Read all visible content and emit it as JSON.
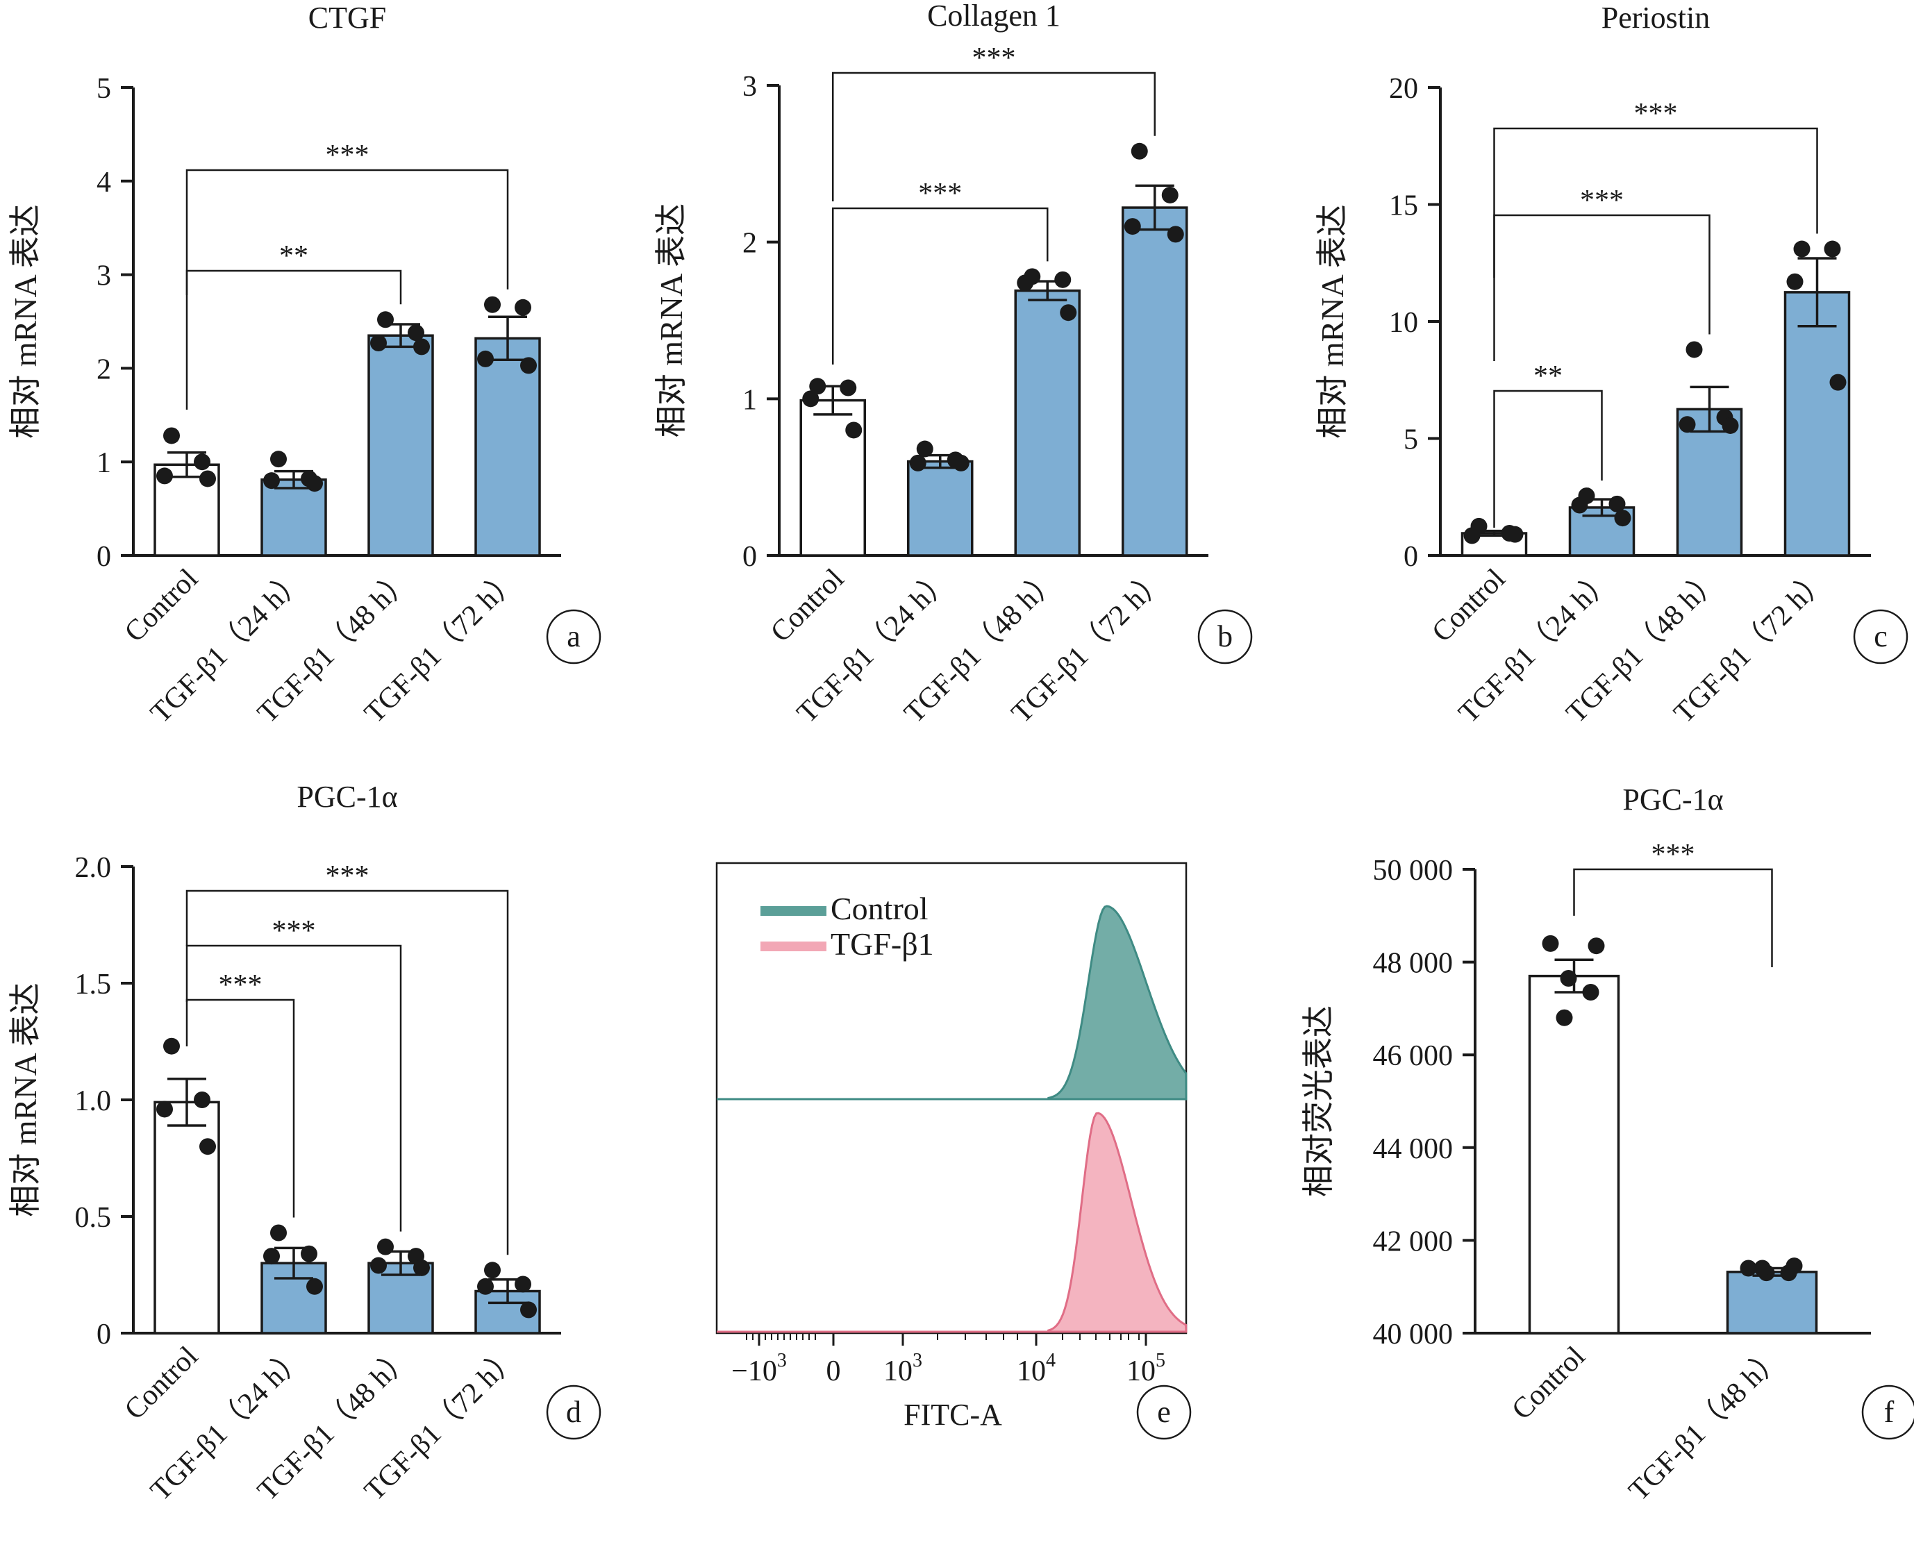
{
  "chart_data": [
    {
      "panel": "a",
      "type": "bar",
      "title": "CTGF",
      "ylabel": "相对 mRNA 表达",
      "ylim": [
        0,
        5
      ],
      "yticks": [
        "0",
        "1",
        "2",
        "3",
        "4",
        "5"
      ],
      "categories": [
        "Control",
        "TGF-β1（24 h）",
        "TGF-β1（48 h）",
        "TGF-β1（72 h）"
      ],
      "values": [
        0.97,
        0.81,
        2.35,
        2.32
      ],
      "errors": [
        0.13,
        0.09,
        0.12,
        0.23
      ],
      "points": [
        [
          1.28,
          1.0,
          0.85,
          0.82
        ],
        [
          1.03,
          0.82,
          0.8,
          0.77
        ],
        [
          2.52,
          2.38,
          2.27,
          2.23
        ],
        [
          2.68,
          2.65,
          2.1,
          2.03
        ]
      ],
      "significance": [
        {
          "from": 0,
          "to": 2,
          "label": "**"
        },
        {
          "from": 0,
          "to": 3,
          "label": "***"
        }
      ],
      "bar_colors": [
        "#ffffff",
        "#7eaed3",
        "#7eaed3",
        "#7eaed3"
      ]
    },
    {
      "panel": "b",
      "type": "bar",
      "title": "Collagen 1",
      "ylabel": "相对 mRNA 表达",
      "ylim": [
        0,
        3
      ],
      "yticks": [
        "0",
        "1",
        "2",
        "3"
      ],
      "categories": [
        "Control",
        "TGF-β1（24 h）",
        "TGF-β1（48 h）",
        "TGF-β1（72 h）"
      ],
      "values": [
        0.99,
        0.6,
        1.69,
        2.22
      ],
      "errors": [
        0.09,
        0.04,
        0.06,
        0.14
      ],
      "points": [
        [
          1.08,
          1.07,
          1.0,
          0.8
        ],
        [
          0.68,
          0.61,
          0.59,
          0.59
        ],
        [
          1.78,
          1.76,
          1.74,
          1.55
        ],
        [
          2.58,
          2.3,
          2.1,
          2.05
        ]
      ],
      "significance": [
        {
          "from": 0,
          "to": 2,
          "label": "***"
        },
        {
          "from": 0,
          "to": 3,
          "label": "***"
        }
      ],
      "bar_colors": [
        "#ffffff",
        "#7eaed3",
        "#7eaed3",
        "#7eaed3"
      ]
    },
    {
      "panel": "c",
      "type": "bar",
      "title": "Periostin",
      "ylabel": "相对 mRNA 表达",
      "ylim": [
        0,
        20
      ],
      "yticks": [
        "0",
        "5",
        "10",
        "15",
        "20"
      ],
      "categories": [
        "Control",
        "TGF-β1（24 h）",
        "TGF-β1（48 h）",
        "TGF-β1（72 h）"
      ],
      "values": [
        0.95,
        2.05,
        6.25,
        11.25
      ],
      "errors": [
        0.1,
        0.35,
        0.95,
        1.45
      ],
      "points": [
        [
          1.25,
          0.95,
          0.85,
          0.9
        ],
        [
          2.55,
          2.2,
          2.15,
          1.6
        ],
        [
          8.8,
          5.9,
          5.6,
          5.55
        ],
        [
          13.1,
          13.1,
          11.7,
          7.4
        ]
      ],
      "significance": [
        {
          "from": 0,
          "to": 1,
          "label": "**"
        },
        {
          "from": 0,
          "to": 2,
          "label": "***"
        },
        {
          "from": 0,
          "to": 3,
          "label": "***"
        }
      ],
      "bar_colors": [
        "#ffffff",
        "#7eaed3",
        "#7eaed3",
        "#7eaed3"
      ]
    },
    {
      "panel": "d",
      "type": "bar",
      "title": "PGC-1α",
      "ylabel": "相对 mRNA 表达",
      "ylim": [
        0,
        2.0
      ],
      "yticks": [
        "0",
        "0.5",
        "1.0",
        "1.5",
        "2.0"
      ],
      "categories": [
        "Control",
        "TGF-β1（24 h）",
        "TGF-β1（48 h）",
        "TGF-β1（72 h）"
      ],
      "values": [
        0.99,
        0.3,
        0.3,
        0.18
      ],
      "errors": [
        0.1,
        0.065,
        0.05,
        0.05
      ],
      "points": [
        [
          1.23,
          1.0,
          0.96,
          0.8
        ],
        [
          0.43,
          0.34,
          0.33,
          0.2
        ],
        [
          0.37,
          0.33,
          0.29,
          0.28
        ],
        [
          0.27,
          0.21,
          0.2,
          0.1
        ]
      ],
      "significance": [
        {
          "from": 0,
          "to": 1,
          "label": "***"
        },
        {
          "from": 0,
          "to": 2,
          "label": "***"
        },
        {
          "from": 0,
          "to": 3,
          "label": "***"
        }
      ],
      "bar_colors": [
        "#ffffff",
        "#7eaed3",
        "#7eaed3",
        "#7eaed3"
      ]
    },
    {
      "panel": "e",
      "type": "area",
      "xlabel": "FITC-A",
      "xticks": [
        {
          "base": "−10",
          "exp": "3"
        },
        {
          "base": "0",
          "exp": ""
        },
        {
          "base": "10",
          "exp": "3"
        },
        {
          "base": "10",
          "exp": "4"
        },
        {
          "base": "10",
          "exp": "5"
        }
      ],
      "series": [
        {
          "name": "Control",
          "color": "#5b9f98",
          "peak_log10": 4.62
        },
        {
          "name": "TGF-β1",
          "color": "#f2a7b5",
          "peak_log10": 4.57
        }
      ]
    },
    {
      "panel": "f",
      "type": "bar",
      "title": "PGC-1α",
      "ylabel": "相对荧光表达",
      "ylim": [
        40000,
        50000
      ],
      "yticks": [
        "40 000",
        "42 000",
        "44 000",
        "46 000",
        "48 000",
        "50 000"
      ],
      "categories": [
        "Control",
        "TGF-β1（48 h）"
      ],
      "values": [
        47700,
        41320
      ],
      "errors": [
        350,
        80
      ],
      "points": [
        [
          48400,
          48350,
          47650,
          47350,
          46800
        ],
        [
          41400,
          41450,
          41300,
          41300,
          41400
        ]
      ],
      "significance": [
        {
          "from": 0,
          "to": 1,
          "label": "***"
        }
      ],
      "bar_colors": [
        "#ffffff",
        "#7eaed3"
      ]
    }
  ]
}
